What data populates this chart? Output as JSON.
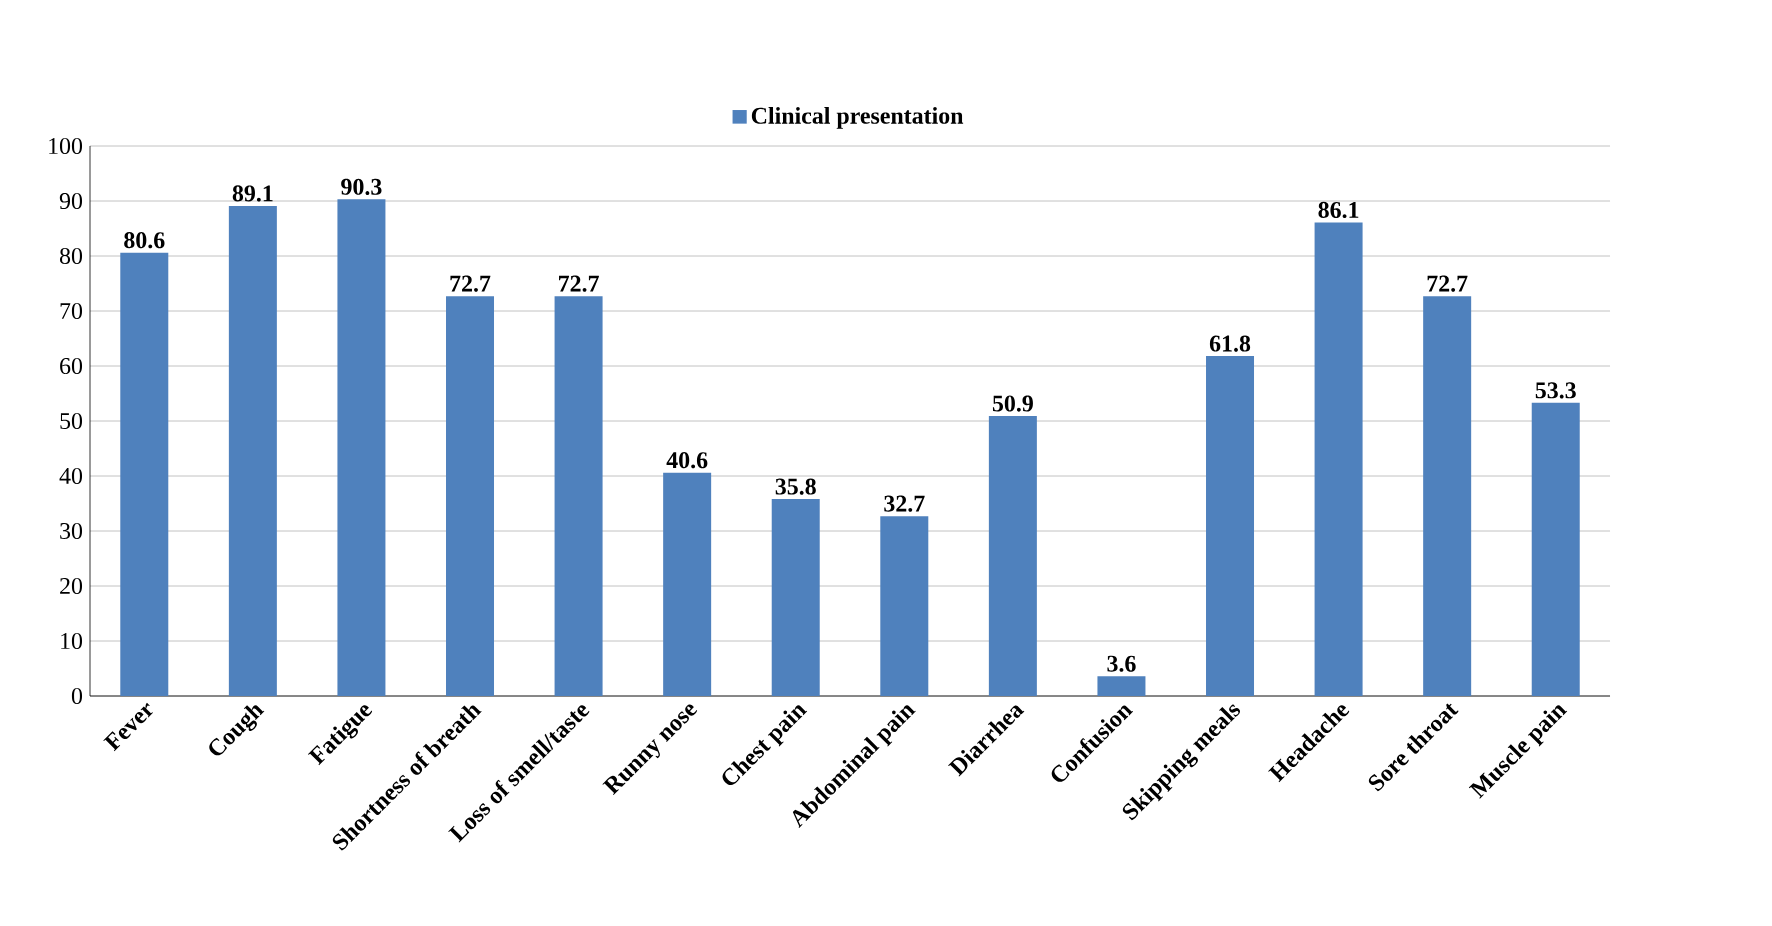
{
  "chart_data": {
    "type": "bar",
    "categories": [
      "Fever",
      "Cough",
      "Fatigue",
      "Shortness of breath",
      "Loss of smell/taste",
      "Runny nose",
      "Chest pain",
      "Abdominal pain",
      "Diarrhea",
      "Confusion",
      "Skipping meals",
      "Headache",
      "Sore throat",
      "Muscle pain"
    ],
    "series": [
      {
        "name": "Clinical presentation",
        "color": "#4f81bd",
        "values": [
          80.6,
          89.1,
          90.3,
          72.7,
          72.7,
          40.6,
          35.8,
          32.7,
          50.9,
          3.6,
          61.8,
          86.1,
          72.7,
          53.3
        ]
      }
    ],
    "ylim": [
      0,
      100
    ],
    "yticks": [
      0,
      10,
      20,
      30,
      40,
      50,
      60,
      70,
      80,
      90,
      100
    ],
    "grid": "y",
    "legend": "top",
    "data_labels": true
  }
}
